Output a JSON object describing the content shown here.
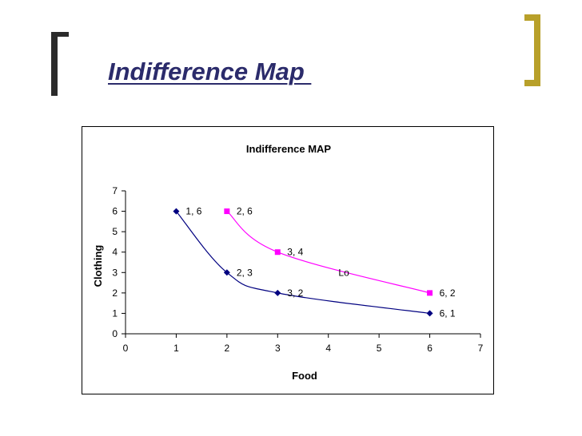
{
  "slide": {
    "title": "Indifference Map ",
    "bracket_colors": {
      "left": "#2b2b2b",
      "right": "#b8a02a"
    }
  },
  "chart_data": {
    "type": "line",
    "title": "Indifference MAP",
    "xlabel": "Food",
    "ylabel": "Clothing",
    "xlim": [
      0,
      7
    ],
    "ylim": [
      0,
      7
    ],
    "xticks": [
      0,
      1,
      2,
      3,
      4,
      5,
      6,
      7
    ],
    "yticks": [
      0,
      1,
      2,
      3,
      4,
      5,
      6,
      7
    ],
    "grid": false,
    "series": [
      {
        "color": "#000080",
        "marker": "diamond",
        "points": [
          {
            "x": 1,
            "y": 6,
            "label": "1, 6"
          },
          {
            "x": 2,
            "y": 3,
            "label": "2, 3"
          },
          {
            "x": 3,
            "y": 2,
            "label": "3, 2"
          },
          {
            "x": 6,
            "y": 1,
            "label": "6, 1"
          }
        ]
      },
      {
        "color": "#ff00ff",
        "marker": "square",
        "points": [
          {
            "x": 2,
            "y": 6,
            "label": "2, 6"
          },
          {
            "x": 3,
            "y": 4,
            "label": "3, 4"
          },
          {
            "x": 6,
            "y": 2,
            "label": "6, 2"
          }
        ]
      }
    ],
    "annotations": [
      {
        "text": "Lo",
        "x": 4.2,
        "y": 3
      }
    ]
  }
}
